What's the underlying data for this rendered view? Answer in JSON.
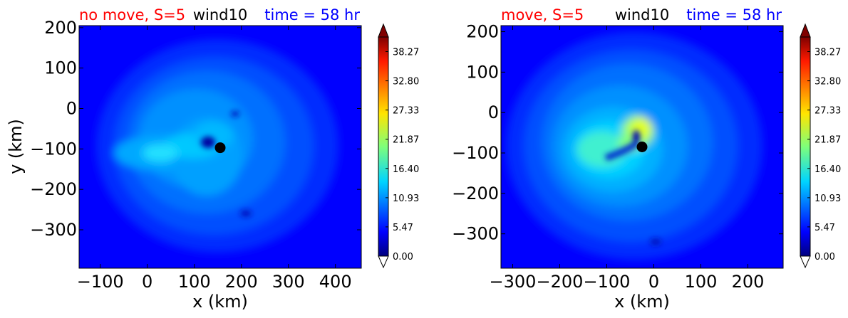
{
  "chart_data": [
    {
      "type": "heatmap",
      "title_left": "no move, S=5",
      "title_center": "wind10",
      "title_right": "time = 58 hr",
      "xlabel": "x (km)",
      "ylabel": "y (km)",
      "xlim": [
        -145,
        455
      ],
      "ylim": [
        -395,
        205
      ],
      "xticks": [
        -100,
        0,
        100,
        200,
        300,
        400
      ],
      "xtick_labels": [
        "−100",
        "0",
        "100",
        "200",
        "300",
        "400"
      ],
      "yticks": [
        200,
        100,
        0,
        -100,
        -200,
        -300
      ],
      "ytick_labels": [
        "200",
        "100",
        "0",
        "−100",
        "−200",
        "−300"
      ],
      "center_marker": {
        "x": 155,
        "y": -97
      },
      "colorbar": {
        "min": 0.0,
        "max": 41.0,
        "tick_values": [
          0.0,
          5.47,
          10.93,
          16.4,
          21.87,
          27.33,
          32.8,
          38.27
        ],
        "tick_labels": [
          "0.00",
          "5.47",
          "10.93",
          "16.40",
          "21.87",
          "27.33",
          "32.80",
          "38.27"
        ],
        "extend": "both"
      }
    },
    {
      "type": "heatmap",
      "title_left": "move, S=5",
      "title_center": "wind10",
      "title_right": "time = 58 hr",
      "xlabel": "x (km)",
      "ylabel": "",
      "xlim": [
        -325,
        275
      ],
      "ylim": [
        -385,
        215
      ],
      "xticks": [
        -300,
        -200,
        -100,
        0,
        100,
        200
      ],
      "xtick_labels": [
        "−300",
        "−200",
        "−100",
        "0",
        "100",
        "200"
      ],
      "yticks": [
        200,
        100,
        0,
        -100,
        -200,
        -300
      ],
      "ytick_labels": [
        "200",
        "100",
        "0",
        "−100",
        "−200",
        "−300"
      ],
      "center_marker": {
        "x": -25,
        "y": -85
      },
      "colorbar": {
        "min": 0.0,
        "max": 41.0,
        "tick_values": [
          0.0,
          5.47,
          10.93,
          16.4,
          21.87,
          27.33,
          32.8,
          38.27
        ],
        "tick_labels": [
          "0.00",
          "5.47",
          "10.93",
          "16.40",
          "21.87",
          "27.33",
          "32.80",
          "38.27"
        ],
        "extend": "both"
      }
    }
  ],
  "colors": {
    "title_left": "#ff0000",
    "title_center": "#000000",
    "title_right": "#0000ff",
    "marker": "#000000"
  }
}
